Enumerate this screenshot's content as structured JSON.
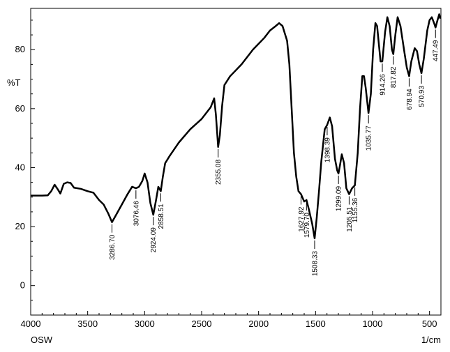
{
  "chart_data": {
    "type": "line",
    "title": "",
    "ylabel": "%T",
    "xlabel": "1/cm",
    "corner_label": "OSW",
    "xlim": [
      4000,
      400
    ],
    "ylim": [
      -10,
      94
    ],
    "x_ticks": [
      4000,
      3500,
      3000,
      2500,
      2000,
      1500,
      1000,
      500
    ],
    "x_tick_labels": [
      "4000",
      "3500",
      "3000",
      "2500",
      "2000",
      "1500",
      "1000",
      "500"
    ],
    "y_ticks": [
      0,
      20,
      40,
      60,
      80
    ],
    "y_tick_labels": [
      "0",
      "20",
      "40",
      "60",
      "80"
    ],
    "grid": false,
    "series": [
      {
        "values": [
          [
            4000,
            30.5
          ],
          [
            3900,
            30.5
          ],
          [
            3850,
            30.6
          ],
          [
            3820,
            32.0
          ],
          [
            3790,
            34.2
          ],
          [
            3760,
            32.5
          ],
          [
            3740,
            31.2
          ],
          [
            3710,
            34.5
          ],
          [
            3680,
            35.0
          ],
          [
            3650,
            34.8
          ],
          [
            3620,
            33.2
          ],
          [
            3560,
            32.8
          ],
          [
            3500,
            32.0
          ],
          [
            3450,
            31.5
          ],
          [
            3400,
            29.0
          ],
          [
            3360,
            27.5
          ],
          [
            3320,
            24.5
          ],
          [
            3286.7,
            21.5
          ],
          [
            3250,
            24.0
          ],
          [
            3200,
            27.5
          ],
          [
            3150,
            31.0
          ],
          [
            3110,
            33.5
          ],
          [
            3076.46,
            33.0
          ],
          [
            3050,
            33.5
          ],
          [
            3020,
            35.5
          ],
          [
            3000,
            38.0
          ],
          [
            2975,
            35.0
          ],
          [
            2950,
            28.0
          ],
          [
            2924.09,
            24.0
          ],
          [
            2900,
            29.0
          ],
          [
            2880,
            33.5
          ],
          [
            2858.51,
            32.0
          ],
          [
            2840,
            37.0
          ],
          [
            2820,
            41.5
          ],
          [
            2780,
            44.0
          ],
          [
            2700,
            48.5
          ],
          [
            2600,
            53.0
          ],
          [
            2500,
            56.5
          ],
          [
            2420,
            60.5
          ],
          [
            2390,
            63.5
          ],
          [
            2375,
            58.0
          ],
          [
            2355.08,
            47.0
          ],
          [
            2340,
            51.0
          ],
          [
            2320,
            61.0
          ],
          [
            2300,
            68.0
          ],
          [
            2250,
            71.0
          ],
          [
            2150,
            75.0
          ],
          [
            2050,
            80.0
          ],
          [
            1950,
            84.0
          ],
          [
            1900,
            86.5
          ],
          [
            1850,
            88.0
          ],
          [
            1820,
            89.0
          ],
          [
            1790,
            88.0
          ],
          [
            1750,
            83.0
          ],
          [
            1730,
            75.0
          ],
          [
            1710,
            60.0
          ],
          [
            1690,
            45.0
          ],
          [
            1670,
            37.0
          ],
          [
            1650,
            32.0
          ],
          [
            1627.92,
            31.0
          ],
          [
            1600,
            28.5
          ],
          [
            1579.7,
            29.0
          ],
          [
            1560,
            26.0
          ],
          [
            1530,
            21.0
          ],
          [
            1508.33,
            16.0
          ],
          [
            1490,
            23.0
          ],
          [
            1470,
            32.0
          ],
          [
            1450,
            42.0
          ],
          [
            1420,
            53.0
          ],
          [
            1398.39,
            54.5
          ],
          [
            1375,
            57.0
          ],
          [
            1355,
            54.0
          ],
          [
            1330,
            43.0
          ],
          [
            1310,
            39.0
          ],
          [
            1299.09,
            38.0
          ],
          [
            1285,
            41.0
          ],
          [
            1270,
            44.5
          ],
          [
            1250,
            41.5
          ],
          [
            1230,
            33.0
          ],
          [
            1205.51,
            31.0
          ],
          [
            1180,
            33.0
          ],
          [
            1155.36,
            34.0
          ],
          [
            1130,
            45.0
          ],
          [
            1110,
            60.0
          ],
          [
            1090,
            71.0
          ],
          [
            1075,
            71.0
          ],
          [
            1060,
            67.0
          ],
          [
            1035.77,
            58.5
          ],
          [
            1015,
            65.0
          ],
          [
            995,
            80.0
          ],
          [
            975,
            89.0
          ],
          [
            960,
            88.0
          ],
          [
            930,
            76.0
          ],
          [
            914.26,
            76.0
          ],
          [
            890,
            86.0
          ],
          [
            870,
            91.0
          ],
          [
            850,
            88.0
          ],
          [
            830,
            80.0
          ],
          [
            817.82,
            78.5
          ],
          [
            800,
            85.0
          ],
          [
            780,
            91.0
          ],
          [
            755,
            88.0
          ],
          [
            720,
            79.0
          ],
          [
            700,
            74.0
          ],
          [
            678.94,
            71.0
          ],
          [
            660,
            76.0
          ],
          [
            630,
            80.5
          ],
          [
            610,
            79.5
          ],
          [
            590,
            75.0
          ],
          [
            570.93,
            72.0
          ],
          [
            550,
            77.0
          ],
          [
            520,
            86.5
          ],
          [
            500,
            90.0
          ],
          [
            480,
            91.0
          ],
          [
            460,
            89.0
          ],
          [
            447.49,
            87.5
          ],
          [
            430,
            90.0
          ],
          [
            415,
            92.0
          ],
          [
            405,
            90.5
          ]
        ]
      }
    ],
    "peak_labels": [
      {
        "x": 3286.7,
        "text": "3286.70"
      },
      {
        "x": 3076.46,
        "text": "3076.46"
      },
      {
        "x": 2924.09,
        "text": "2924.09"
      },
      {
        "x": 2858.51,
        "text": "2858.51"
      },
      {
        "x": 2355.08,
        "text": "2355.08"
      },
      {
        "x": 1627.92,
        "text": "1627.92"
      },
      {
        "x": 1579.7,
        "text": "1579.70"
      },
      {
        "x": 1508.33,
        "text": "1508.33"
      },
      {
        "x": 1398.39,
        "text": "1398.39"
      },
      {
        "x": 1299.09,
        "text": "1299.09"
      },
      {
        "x": 1205.51,
        "text": "1205.51"
      },
      {
        "x": 1155.36,
        "text": "1155.36"
      },
      {
        "x": 1035.77,
        "text": "1035.77"
      },
      {
        "x": 914.26,
        "text": "914.26"
      },
      {
        "x": 817.82,
        "text": "817.82"
      },
      {
        "x": 678.94,
        "text": "678.94"
      },
      {
        "x": 570.93,
        "text": "570.93"
      },
      {
        "x": 447.49,
        "text": "447.49"
      }
    ],
    "colors": {
      "line": "#000000",
      "axis": "#000000"
    }
  }
}
